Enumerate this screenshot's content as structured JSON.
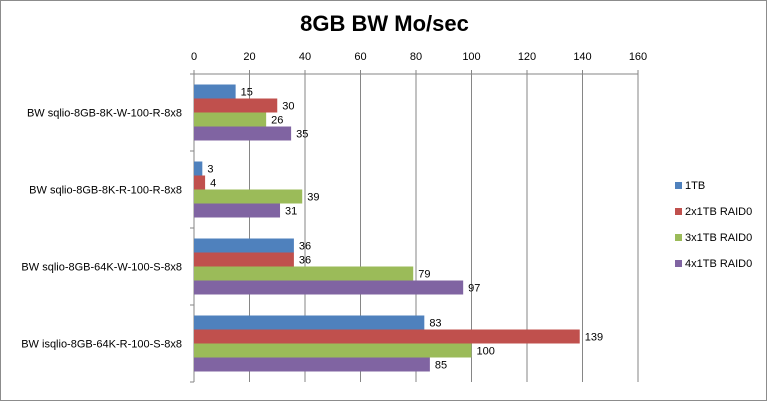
{
  "chart_data": {
    "type": "bar",
    "orientation": "horizontal",
    "title": "8GB BW Mo/sec",
    "xlim": [
      0,
      160
    ],
    "xticks": [
      0,
      20,
      40,
      60,
      80,
      100,
      120,
      140,
      160
    ],
    "grid": true,
    "legend_position": "right",
    "categories": [
      "BW sqlio-8GB-8K-W-100-R-8x8",
      "BW  sqlio-8GB-8K-R-100-R-8x8",
      "BW sqlio-8GB-64K-W-100-S-8x8",
      "BW isqlio-8GB-64K-R-100-S-8x8"
    ],
    "series": [
      {
        "name": "1TB",
        "color": "#4f81bd",
        "values": [
          15,
          3,
          36,
          83
        ]
      },
      {
        "name": "2x1TB RAID0",
        "color": "#c0504d",
        "values": [
          30,
          4,
          36,
          139
        ]
      },
      {
        "name": "3x1TB RAID0",
        "color": "#9bbb59",
        "values": [
          26,
          39,
          79,
          100
        ]
      },
      {
        "name": "4x1TB RAID0",
        "color": "#8064a2",
        "values": [
          35,
          31,
          97,
          85
        ]
      }
    ]
  }
}
